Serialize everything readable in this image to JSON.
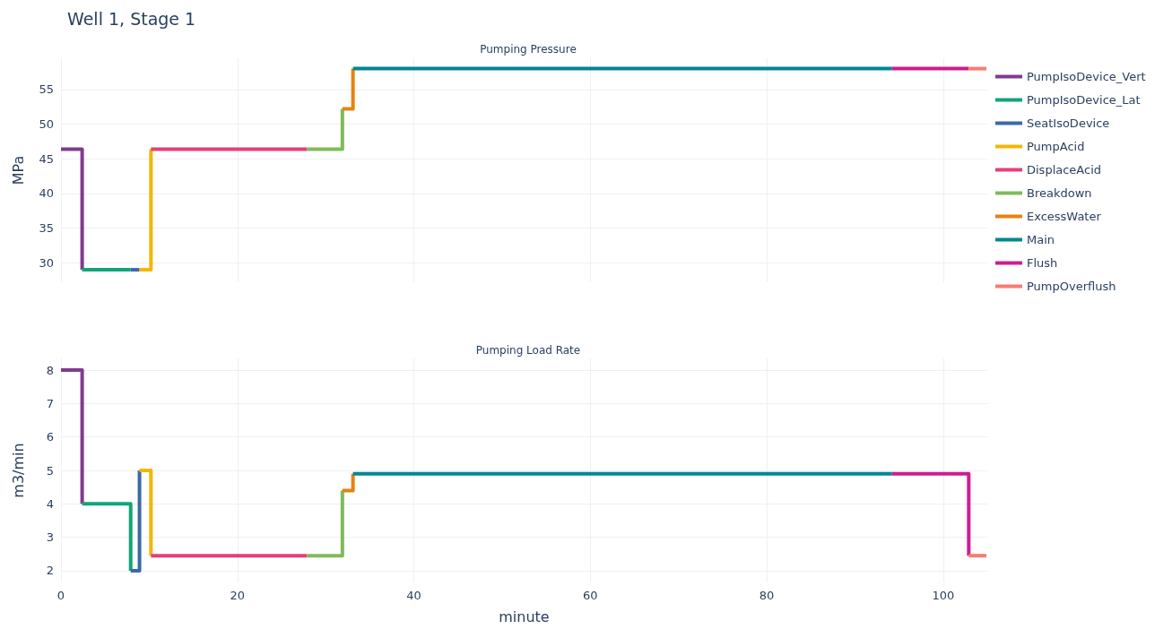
{
  "chart_data": [
    {
      "type": "step",
      "title": "Well 1, Stage 1",
      "subtitle": "Pumping Pressure",
      "ylabel": "MPa",
      "xlim": [
        0,
        105
      ],
      "xticks": [
        0,
        20,
        40,
        60,
        80,
        100
      ],
      "ylim": [
        27.2,
        59.5
      ],
      "yticks": [
        30,
        35,
        40,
        45,
        50,
        55
      ],
      "grid": true,
      "legend": "right",
      "tick_labels": "y",
      "line_style": "solid",
      "series": [
        {
          "name": "PumpIsoDevice_Vert",
          "color": "#7f3c8d",
          "x": [
            0,
            2.4
          ],
          "values": [
            46.4,
            29
          ]
        },
        {
          "name": "PumpIsoDevice_Lat",
          "color": "#11a579",
          "x": [
            2.4,
            7.9
          ],
          "values": [
            29,
            29
          ]
        },
        {
          "name": "SeatIsoDevice",
          "color": "#3969ac",
          "x": [
            7.9,
            8.9
          ],
          "values": [
            29,
            29
          ]
        },
        {
          "name": "PumpAcid",
          "color": "#f2b701",
          "x": [
            8.9,
            10.2
          ],
          "values": [
            29,
            46.4
          ]
        },
        {
          "name": "DisplaceAcid",
          "color": "#e73f74",
          "x": [
            10.2,
            27.9
          ],
          "values": [
            46.4,
            46.4
          ]
        },
        {
          "name": "Breakdown",
          "color": "#80ba5a",
          "x": [
            27.9,
            31.9
          ],
          "values": [
            46.4,
            52.2
          ]
        },
        {
          "name": "ExcessWater",
          "color": "#e68310",
          "x": [
            31.9,
            33.1
          ],
          "values": [
            52.2,
            58
          ]
        },
        {
          "name": "Main",
          "color": "#008695",
          "x": [
            33.1,
            94.2
          ],
          "values": [
            58,
            58
          ]
        },
        {
          "name": "Flush",
          "color": "#cf1c90",
          "x": [
            94.2,
            102.9
          ],
          "values": [
            58,
            58
          ]
        },
        {
          "name": "PumpOverflush",
          "color": "#f97b72",
          "x": [
            102.9,
            104.9
          ],
          "values": [
            58,
            58
          ]
        }
      ]
    },
    {
      "type": "step",
      "title": "Pumping Load Rate",
      "xlabel": "minute",
      "ylabel": "m3/min",
      "xlim": [
        0,
        105
      ],
      "xticks": [
        0,
        20,
        40,
        60,
        80,
        100
      ],
      "ylim": [
        1.65,
        8.35
      ],
      "yticks": [
        2,
        3,
        4,
        5,
        6,
        7,
        8
      ],
      "grid": true,
      "line_style": "solid",
      "series": [
        {
          "color": "#7f3c8d",
          "x": [
            0,
            2.4
          ],
          "values": [
            8,
            4
          ]
        },
        {
          "color": "#11a579",
          "x": [
            2.4,
            7.9
          ],
          "values": [
            4,
            2
          ]
        },
        {
          "color": "#3969ac",
          "x": [
            7.9,
            8.9
          ],
          "values": [
            2,
            5
          ]
        },
        {
          "color": "#f2b701",
          "x": [
            8.9,
            10.2
          ],
          "values": [
            5,
            2.45
          ]
        },
        {
          "color": "#e73f74",
          "x": [
            10.2,
            27.9
          ],
          "values": [
            2.45,
            2.45
          ]
        },
        {
          "color": "#80ba5a",
          "x": [
            27.9,
            31.9
          ],
          "values": [
            2.45,
            4.4
          ]
        },
        {
          "color": "#e68310",
          "x": [
            31.9,
            33.1
          ],
          "values": [
            4.4,
            4.9
          ]
        },
        {
          "color": "#008695",
          "x": [
            33.1,
            94.2
          ],
          "values": [
            4.9,
            4.9
          ]
        },
        {
          "color": "#cf1c90",
          "x": [
            94.2,
            102.9
          ],
          "values": [
            4.9,
            2.45
          ]
        },
        {
          "color": "#f97b72",
          "x": [
            102.9,
            104.9
          ],
          "values": [
            2.45,
            2.45
          ]
        }
      ]
    }
  ]
}
